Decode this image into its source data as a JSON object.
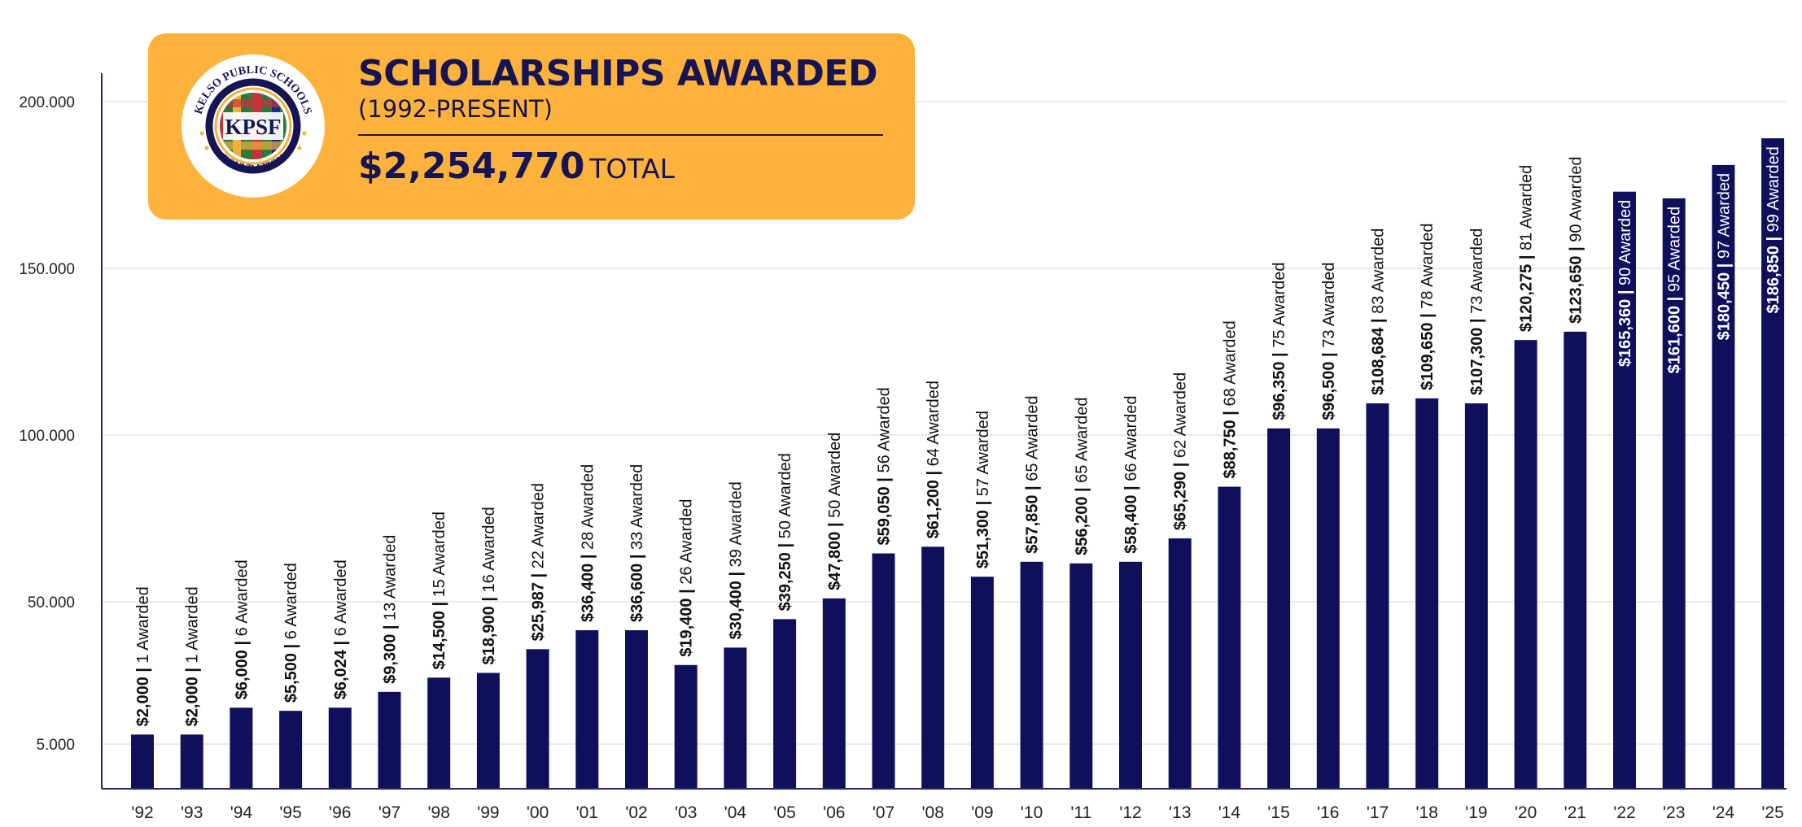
{
  "header": {
    "title": "SCHOLARSHIPS AWARDED",
    "subtitle": "(1992-PRESENT)",
    "total_amount": "$2,254,770",
    "total_label": "TOTAL"
  },
  "logo": {
    "top_text": "KELSO PUBLIC SCHOOLS",
    "center_text": "KPSF",
    "bottom_text": "FOUNDATION"
  },
  "colors": {
    "bar": "#0f0f5c",
    "card": "#fdb23c",
    "title": "#171453",
    "grid": "#e4e4ea",
    "axis": "#2a2a5e"
  },
  "chart_data": {
    "type": "bar",
    "title": "SCHOLARSHIPS AWARDED (1992-PRESENT)",
    "xlabel": "",
    "ylabel": "",
    "y_ticks": [
      {
        "value": 5000,
        "label": "5.000"
      },
      {
        "value": 50000,
        "label": "50.000"
      },
      {
        "value": 100000,
        "label": "100.000"
      },
      {
        "value": 150000,
        "label": "150.000"
      },
      {
        "value": 200000,
        "label": "200.000"
      }
    ],
    "grid": true,
    "categories": [
      "'92",
      "'93",
      "'94",
      "'95",
      "'96",
      "'97",
      "'98",
      "'99",
      "'00",
      "'01",
      "'02",
      "'03",
      "'04",
      "'05",
      "'06",
      "'07",
      "'08",
      "'09",
      "'10",
      "'11",
      "'12",
      "'13",
      "'14",
      "'15",
      "'16",
      "'17",
      "'18",
      "'19",
      "'20",
      "'21",
      "'22",
      "'23",
      "'24",
      "'25"
    ],
    "values": [
      2000,
      2000,
      6000,
      5500,
      6024,
      9300,
      14500,
      18900,
      25987,
      36400,
      36600,
      19400,
      30400,
      39250,
      47800,
      59050,
      61200,
      51300,
      57850,
      56200,
      58400,
      65290,
      88750,
      96350,
      96500,
      108684,
      109650,
      107300,
      120275,
      123650,
      165360,
      161600,
      180450,
      186850
    ],
    "bar_heights_approx": [
      8000,
      8000,
      16500,
      15500,
      16500,
      21500,
      26000,
      27500,
      35000,
      41000,
      41000,
      30000,
      35500,
      44500,
      51000,
      64500,
      66500,
      57500,
      62000,
      61500,
      62000,
      69000,
      84500,
      102000,
      102000,
      109500,
      111000,
      109500,
      128500,
      131000,
      173000,
      171000,
      181000,
      189000
    ],
    "amount_labels": [
      "$2,000",
      "$2,000",
      "$6,000",
      "$5,500",
      "$6,024",
      "$9,300",
      "$14,500",
      "$18,900",
      "$25,987",
      "$36,400",
      "$36,600",
      "$19,400",
      "$30,400",
      "$39,250",
      "$47,800",
      "$59,050",
      "$61,200",
      "$51,300",
      "$57,850",
      "$56,200",
      "$58,400",
      "$65,290",
      "$88,750",
      "$96,350",
      "$96,500",
      "$108,684",
      "$109,650",
      "$107,300",
      "$120,275",
      "$123,650",
      "$165,360",
      "$161,600",
      "$180,450",
      "$186,850"
    ],
    "count_labels": [
      "1 Awarded",
      "1 Awarded",
      "6 Awarded",
      "6 Awarded",
      "6 Awarded",
      "13 Awarded",
      "15 Awarded",
      "16 Awarded",
      "22 Awarded",
      "28 Awarded",
      "33 Awarded",
      "26 Awarded",
      "39 Awarded",
      "50 Awarded",
      "50 Awarded",
      "56 Awarded",
      "64 Awarded",
      "57 Awarded",
      "65 Awarded",
      "65 Awarded",
      "66 Awarded",
      "62 Awarded",
      "68 Awarded",
      "75 Awarded",
      "73 Awarded",
      "83 Awarded",
      "78 Awarded",
      "73 Awarded",
      "81 Awarded",
      "90 Awarded",
      "90 Awarded",
      "95 Awarded",
      "97 Awarded",
      "99 Awarded"
    ],
    "inside_label_from_index": 30
  }
}
